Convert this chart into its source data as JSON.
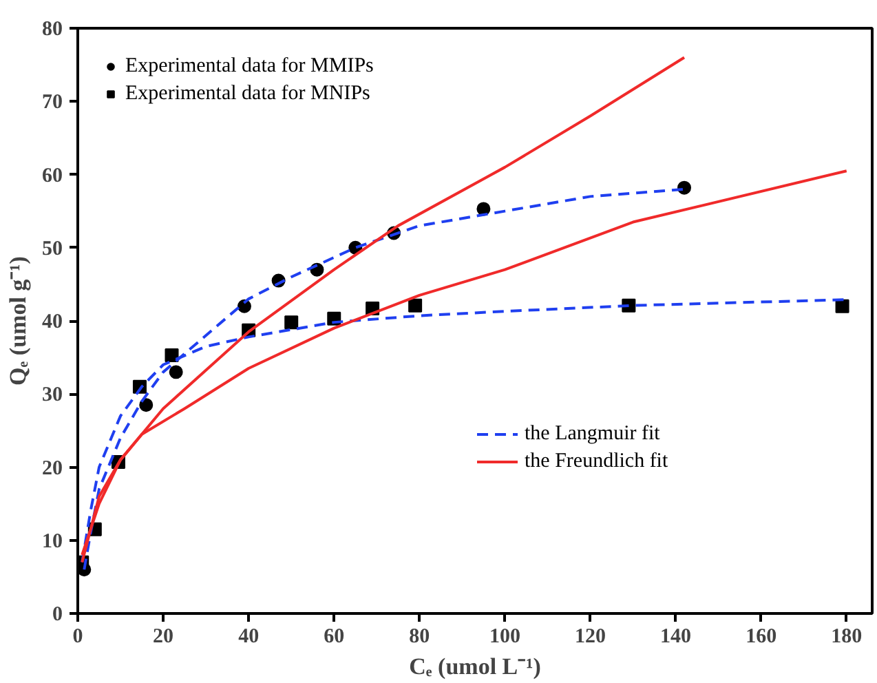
{
  "chart_data": {
    "type": "scatter",
    "xlabel": "Cₑ (umol L⁻¹)",
    "ylabel": "Qₑ (umol g⁻¹)",
    "xlim": [
      0,
      186
    ],
    "ylim": [
      0,
      80
    ],
    "xticks": [
      0,
      20,
      40,
      60,
      80,
      100,
      120,
      140,
      160,
      180
    ],
    "yticks": [
      0,
      10,
      20,
      30,
      40,
      50,
      60,
      70,
      80
    ],
    "grid": false,
    "legend": "top left",
    "series": [
      {
        "name": "Experimental data for MMIPs",
        "marker": "circle",
        "color": "#000000",
        "x": [
          1.5,
          16,
          23,
          39,
          47,
          56,
          65,
          74,
          95,
          142
        ],
        "values": [
          6,
          28.5,
          33,
          42,
          45.5,
          47,
          50,
          52,
          55.3,
          58.2
        ]
      },
      {
        "name": "Experimental data for MNIPs",
        "marker": "square",
        "color": "#000000",
        "x": [
          1,
          4,
          9.5,
          14.5,
          22,
          40,
          50,
          60,
          69,
          79,
          129,
          179
        ],
        "values": [
          7,
          11.5,
          20.7,
          31,
          35.3,
          38.7,
          39.8,
          40.3,
          41.7,
          42.1,
          42.1,
          42
        ]
      },
      {
        "name": "the Langmuir fit",
        "type": "line",
        "line_style": "dashed",
        "color": "#1f3ff0",
        "x": [
          1.5,
          3,
          5,
          10,
          15,
          20,
          30,
          40,
          50,
          65,
          80,
          100,
          120,
          142
        ],
        "values": [
          6,
          11,
          17,
          24,
          29,
          33,
          38,
          43,
          46,
          50,
          53,
          55,
          57,
          58
        ]
      },
      {
        "type": "line",
        "line_style": "dashed",
        "color": "#1f3ff0",
        "x": [
          1,
          3,
          5,
          10,
          15,
          20,
          30,
          40,
          60,
          80,
          100,
          130,
          180
        ],
        "values": [
          7,
          14,
          20,
          27,
          31,
          34,
          36.5,
          37.8,
          39.8,
          40.7,
          41.3,
          42.1,
          42.9
        ]
      },
      {
        "name": "the Freundlich fit",
        "type": "line",
        "line_style": "solid",
        "color": "#f02a2a",
        "x": [
          1,
          5,
          10,
          20,
          40,
          60,
          75,
          100,
          120,
          142
        ],
        "values": [
          8,
          15,
          21,
          28,
          38.5,
          47,
          53,
          61,
          68,
          76
        ]
      },
      {
        "type": "line",
        "line_style": "solid",
        "color": "#f02a2a",
        "x": [
          1,
          5,
          10,
          15,
          25,
          40,
          60,
          80,
          100,
          130,
          180
        ],
        "values": [
          7,
          16,
          21,
          24.5,
          28,
          33.5,
          39,
          43.5,
          47,
          53.5,
          60.5
        ]
      }
    ]
  }
}
